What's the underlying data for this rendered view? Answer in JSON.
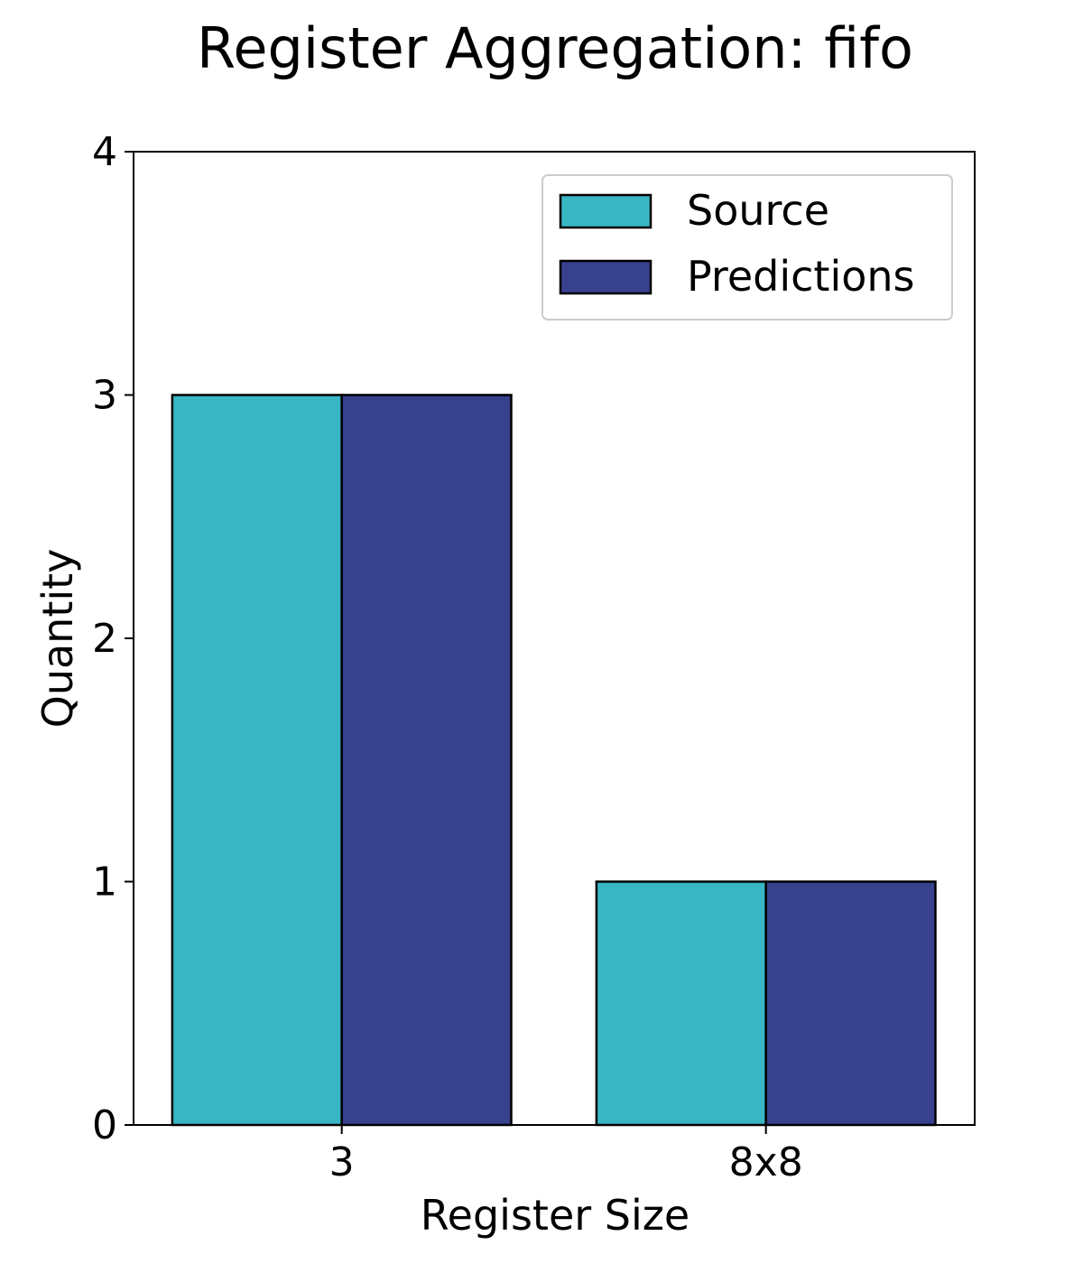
{
  "chart_data": {
    "type": "bar",
    "title": "Register Aggregation: fifo",
    "xlabel": "Register Size",
    "ylabel": "Quantity",
    "categories": [
      "3",
      "8x8"
    ],
    "series": [
      {
        "name": "Source",
        "values": [
          3,
          1
        ],
        "color": "#38b6c3"
      },
      {
        "name": "Predictions",
        "values": [
          3,
          1
        ],
        "color": "#38418d"
      }
    ],
    "ylim": [
      0,
      4
    ],
    "yticks": [
      0,
      1,
      2,
      3,
      4
    ],
    "legend_position": "top-right",
    "grid": false
  }
}
